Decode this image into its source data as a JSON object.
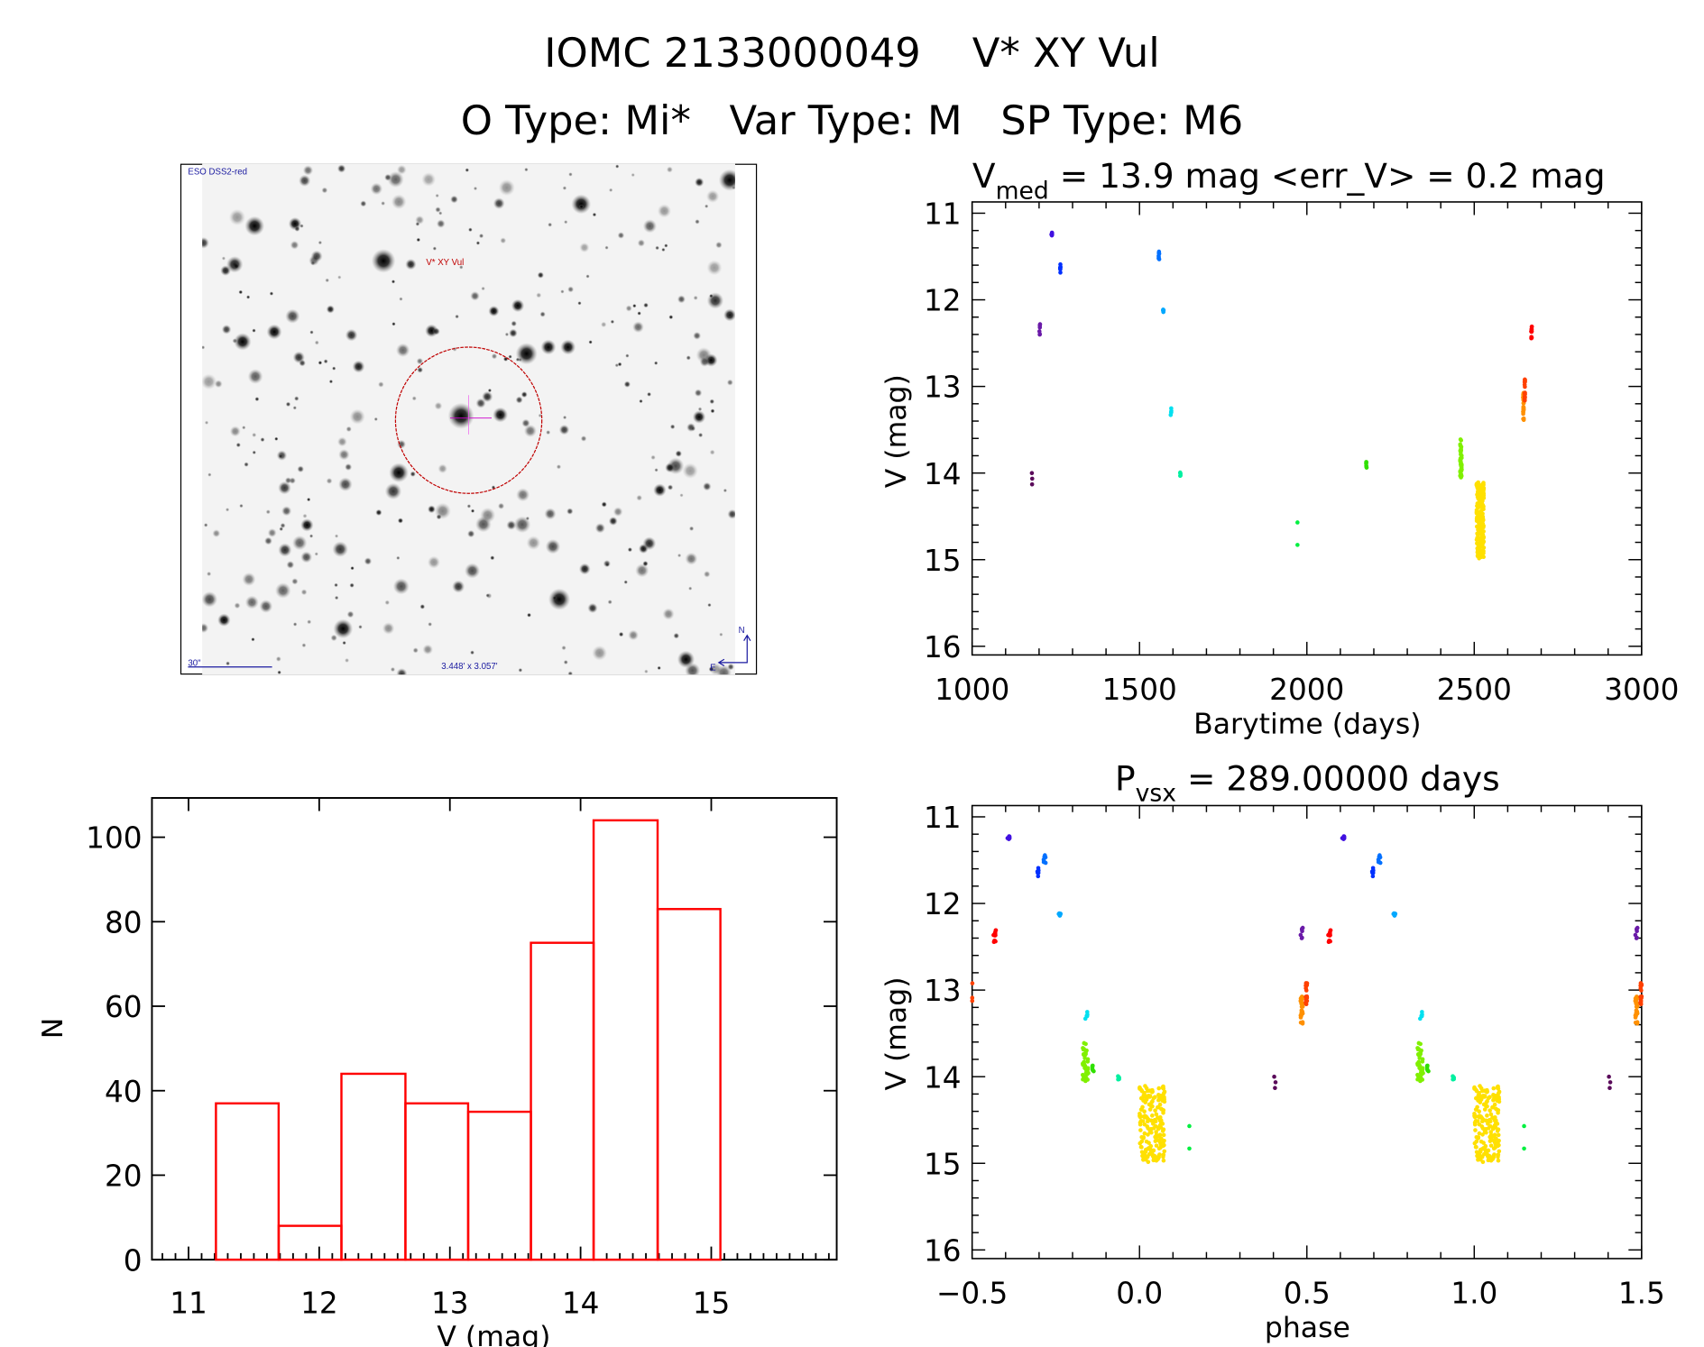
{
  "header": {
    "line1": "IOMC 2133000049    V* XY Vul",
    "line2": "O Type: Mi*   Var Type: M   SP Type: M6"
  },
  "sky_image": {
    "survey_label": "ESO DSS2-red",
    "target_label": "V* XY Vul",
    "scale_label": "30\"",
    "field_label": "3.448' x 3.057'",
    "north_label": "N",
    "east_label": "E",
    "circle_color": "#c00000",
    "label_color": "#1a1aa0"
  },
  "chart_data": [
    {
      "id": "light_curve",
      "type": "scatter",
      "title_main": "V",
      "title_sub": "med",
      "title_rest": " = 13.9 mag <err_V> = 0.2 mag",
      "xlabel": "Barytime (days)",
      "ylabel": "V (mag)",
      "xlim": [
        1000,
        3000
      ],
      "ylim": [
        10.87,
        16.1
      ],
      "y_inverted": true,
      "xticks": [
        1000,
        1500,
        2000,
        2500,
        3000
      ],
      "xtick_labels": [
        "1000",
        "1500",
        "2000",
        "2500",
        "3000"
      ],
      "yticks": [
        11,
        12,
        13,
        14,
        15,
        16
      ],
      "ytick_labels": [
        "11",
        "12",
        "13",
        "14",
        "15",
        "16"
      ],
      "clusters": [
        {
          "t": [
            1178,
            1180
          ],
          "v": [
            14.0,
            14.13
          ],
          "n": 3,
          "color": "#5a0a5a"
        },
        {
          "t": [
            1201,
            1203
          ],
          "v": [
            12.26,
            12.41
          ],
          "n": 7,
          "color": "#6a1aa8"
        },
        {
          "t": [
            1237,
            1239
          ],
          "v": [
            11.2,
            11.28
          ],
          "n": 6,
          "color": "#4010e0"
        },
        {
          "t": [
            1262,
            1264
          ],
          "v": [
            11.58,
            11.7
          ],
          "n": 8,
          "color": "#0030ff"
        },
        {
          "t": [
            1557,
            1559
          ],
          "v": [
            11.43,
            11.54
          ],
          "n": 8,
          "color": "#0070ff"
        },
        {
          "t": [
            1570,
            1572
          ],
          "v": [
            12.06,
            12.15
          ],
          "n": 6,
          "color": "#00a8ff"
        },
        {
          "t": [
            1593,
            1595
          ],
          "v": [
            13.25,
            13.34
          ],
          "n": 5,
          "color": "#00e0f0"
        },
        {
          "t": [
            1621,
            1623
          ],
          "v": [
            13.99,
            14.06
          ],
          "n": 5,
          "color": "#00f0a0"
        },
        {
          "t": [
            1972,
            1972
          ],
          "v": [
            14.57,
            14.83
          ],
          "n": 2,
          "color": "#00f040"
        },
        {
          "t": [
            2177,
            2179
          ],
          "v": [
            13.87,
            13.94
          ],
          "n": 6,
          "color": "#30e000"
        },
        {
          "t": [
            2458,
            2463
          ],
          "v": [
            13.6,
            14.05
          ],
          "n": 40,
          "color": "#80f000"
        },
        {
          "t": [
            2507,
            2529
          ],
          "v": [
            14.1,
            15.0
          ],
          "n": 180,
          "color": "#ffe000"
        },
        {
          "t": [
            2646,
            2648
          ],
          "v": [
            13.04,
            13.39
          ],
          "n": 25,
          "color": "#ff9000"
        },
        {
          "t": [
            2650,
            2652
          ],
          "v": [
            12.92,
            13.17
          ],
          "n": 20,
          "color": "#ff4000"
        },
        {
          "t": [
            2670,
            2672
          ],
          "v": [
            12.3,
            12.46
          ],
          "n": 15,
          "color": "#ff0000"
        }
      ]
    },
    {
      "id": "phase_curve",
      "type": "scatter",
      "title_main": "P",
      "title_sub": "vsx",
      "title_rest": " = 289.00000 days",
      "period_days": 289.0,
      "epoch_days": 2507,
      "xlabel": "phase",
      "ylabel": "V (mag)",
      "xlim": [
        -0.5,
        1.5
      ],
      "ylim": [
        10.87,
        16.1
      ],
      "y_inverted": true,
      "xticks": [
        -0.5,
        0.0,
        0.5,
        1.0,
        1.5
      ],
      "xtick_labels": [
        "−0.5",
        "0.0",
        "0.5",
        "1.0",
        "1.5"
      ],
      "yticks": [
        11,
        12,
        13,
        14,
        15,
        16
      ],
      "ytick_labels": [
        "11",
        "12",
        "13",
        "14",
        "15",
        "16"
      ],
      "source": "light_curve"
    },
    {
      "id": "histogram",
      "type": "bar",
      "xlabel": "V (mag)",
      "ylabel": "N",
      "xlim": [
        10.72,
        15.96
      ],
      "ylim": [
        0,
        109.3
      ],
      "bin_edges": [
        11.21,
        11.69,
        12.17,
        12.66,
        13.14,
        13.62,
        14.1,
        14.59,
        15.07
      ],
      "values": [
        37,
        8,
        44,
        37,
        35,
        75,
        104,
        83
      ],
      "bar_color": "#ff0000",
      "xticks": [
        11,
        12,
        13,
        14,
        15
      ],
      "xtick_labels": [
        "11",
        "12",
        "13",
        "14",
        "15"
      ],
      "yticks": [
        0,
        20,
        40,
        60,
        80,
        100
      ],
      "ytick_labels": [
        "0",
        "20",
        "40",
        "60",
        "80",
        "100"
      ]
    }
  ]
}
